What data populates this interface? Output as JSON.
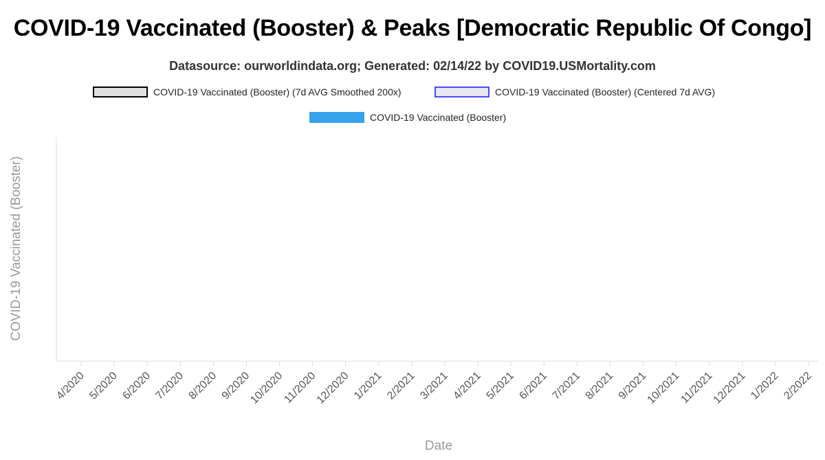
{
  "chart_data": {
    "type": "bar",
    "title": "COVID-19 Vaccinated (Booster) & Peaks [Democratic Republic Of Congo]",
    "subtitle": "Datasource: ourworldindata.org; Generated: 02/14/22 by COVID19.USMortality.com",
    "xlabel": "Date",
    "ylabel": "COVID-19 Vaccinated (Booster)",
    "legend": [
      {
        "name": "COVID-19 Vaccinated (Booster) (7d AVG Smoothed 200x)",
        "style": "line",
        "fill": "#e0e0e0",
        "border": "#000000"
      },
      {
        "name": "COVID-19 Vaccinated (Booster) (Centered 7d AVG)",
        "style": "line",
        "fill": "#e8e8f0",
        "border": "#4a4aff"
      },
      {
        "name": "COVID-19 Vaccinated (Booster)",
        "style": "bar",
        "fill": "#36a2eb",
        "border": "#36a2eb"
      }
    ],
    "legend_placement": "top",
    "x_ticks": [
      "4/2020",
      "5/2020",
      "6/2020",
      "7/2020",
      "8/2020",
      "9/2020",
      "10/2020",
      "11/2020",
      "12/2020",
      "1/2021",
      "2/2021",
      "3/2021",
      "4/2021",
      "5/2021",
      "6/2021",
      "7/2021",
      "8/2021",
      "9/2021",
      "10/2021",
      "11/2021",
      "12/2021",
      "1/2022",
      "2/2022"
    ],
    "series": [],
    "grid": false
  }
}
